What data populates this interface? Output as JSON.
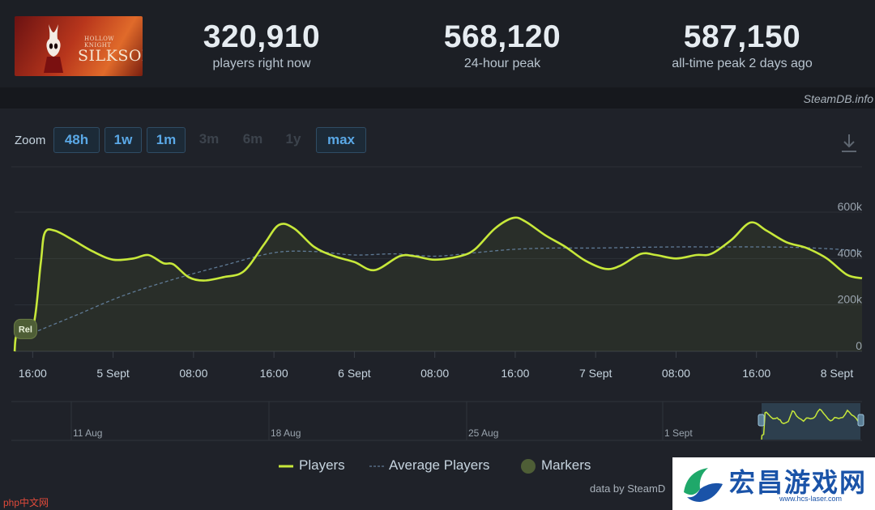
{
  "header": {
    "logo_name": "silksong-logo",
    "logo_small_text": "HOLLOW KNIGHT",
    "logo_text": "SILKSONG",
    "stats": [
      {
        "value": "320,910",
        "label": "players right now"
      },
      {
        "value": "568,120",
        "label": "24-hour peak"
      },
      {
        "value": "587,150",
        "label": "all-time peak 2 days ago"
      }
    ]
  },
  "credit": "SteamDB.info",
  "zoom": {
    "label": "Zoom",
    "buttons": [
      {
        "label": "48h",
        "enabled": true
      },
      {
        "label": "1w",
        "enabled": true
      },
      {
        "label": "1m",
        "enabled": true
      },
      {
        "label": "3m",
        "enabled": false
      },
      {
        "label": "6m",
        "enabled": false
      },
      {
        "label": "1y",
        "enabled": false
      },
      {
        "label": "max",
        "enabled": true
      }
    ],
    "download_icon": "download-icon"
  },
  "chart_data": {
    "type": "line",
    "title": "",
    "ylim": [
      0,
      600000
    ],
    "y_ticks": [
      {
        "value": 0,
        "label": "0"
      },
      {
        "value": 200000,
        "label": "200k"
      },
      {
        "value": 400000,
        "label": "400k"
      },
      {
        "value": 600000,
        "label": "600k"
      }
    ],
    "x_ticks": [
      "16:00",
      "5 Sept",
      "08:00",
      "16:00",
      "6 Sept",
      "08:00",
      "16:00",
      "7 Sept",
      "08:00",
      "16:00",
      "8 Sept"
    ],
    "x_hours": [
      16,
      24,
      32,
      40,
      48,
      56,
      64,
      72,
      80,
      88,
      96
    ],
    "x_range_hours": [
      14.2,
      98.5
    ],
    "grid": true,
    "legend": "bottom",
    "series": [
      {
        "name": "Players",
        "color": "#c7e83a",
        "points": [
          [
            14.2,
            0
          ],
          [
            14.5,
            80000
          ],
          [
            16.0,
            100000
          ],
          [
            16.8,
            380000
          ],
          [
            17.2,
            510000
          ],
          [
            18.2,
            520000
          ],
          [
            20.0,
            480000
          ],
          [
            22.0,
            430000
          ],
          [
            24.0,
            395000
          ],
          [
            26.0,
            400000
          ],
          [
            27.5,
            415000
          ],
          [
            29.0,
            380000
          ],
          [
            30.0,
            375000
          ],
          [
            31.5,
            320000
          ],
          [
            33.0,
            305000
          ],
          [
            35.0,
            320000
          ],
          [
            37.0,
            345000
          ],
          [
            39.0,
            460000
          ],
          [
            40.5,
            545000
          ],
          [
            42.0,
            530000
          ],
          [
            44.0,
            450000
          ],
          [
            46.0,
            410000
          ],
          [
            48.0,
            385000
          ],
          [
            50.0,
            350000
          ],
          [
            52.5,
            410000
          ],
          [
            54.0,
            410000
          ],
          [
            56.0,
            395000
          ],
          [
            58.5,
            410000
          ],
          [
            60.0,
            440000
          ],
          [
            62.0,
            530000
          ],
          [
            63.8,
            575000
          ],
          [
            65.0,
            560000
          ],
          [
            67.0,
            500000
          ],
          [
            69.0,
            450000
          ],
          [
            71.0,
            390000
          ],
          [
            73.0,
            355000
          ],
          [
            74.5,
            370000
          ],
          [
            76.5,
            420000
          ],
          [
            78.0,
            415000
          ],
          [
            80.0,
            400000
          ],
          [
            82.0,
            415000
          ],
          [
            83.5,
            420000
          ],
          [
            85.5,
            480000
          ],
          [
            87.4,
            555000
          ],
          [
            89.0,
            520000
          ],
          [
            91.0,
            470000
          ],
          [
            93.0,
            445000
          ],
          [
            95.0,
            400000
          ],
          [
            97.0,
            330000
          ],
          [
            98.5,
            315000
          ]
        ]
      },
      {
        "name": "Average Players",
        "color": "#5f7a95",
        "points": [
          [
            15.5,
            70000
          ],
          [
            20.0,
            150000
          ],
          [
            25.0,
            240000
          ],
          [
            30.0,
            310000
          ],
          [
            35.0,
            370000
          ],
          [
            40.0,
            425000
          ],
          [
            44.0,
            430000
          ],
          [
            48.0,
            415000
          ],
          [
            52.0,
            420000
          ],
          [
            56.0,
            410000
          ],
          [
            60.0,
            425000
          ],
          [
            64.0,
            440000
          ],
          [
            68.0,
            445000
          ],
          [
            72.0,
            445000
          ],
          [
            76.0,
            448000
          ],
          [
            80.0,
            450000
          ],
          [
            84.0,
            450000
          ],
          [
            88.0,
            450000
          ],
          [
            92.0,
            448000
          ],
          [
            96.0,
            440000
          ],
          [
            98.5,
            430000
          ]
        ]
      }
    ],
    "markers": [
      {
        "label": "Rel",
        "x": 15.2,
        "y": 100000
      }
    ],
    "navigator": {
      "labels": [
        "11 Aug",
        "18 Aug",
        "25 Aug",
        "1 Sept"
      ]
    }
  },
  "legend_items": [
    {
      "label": "Players"
    },
    {
      "label": "Average Players"
    },
    {
      "label": "Markers"
    }
  ],
  "footer": "data by SteamD",
  "watermark": {
    "title": "宏昌游戏网",
    "url": "www.hcs-laser.com"
  },
  "php_tag": "php中文网"
}
